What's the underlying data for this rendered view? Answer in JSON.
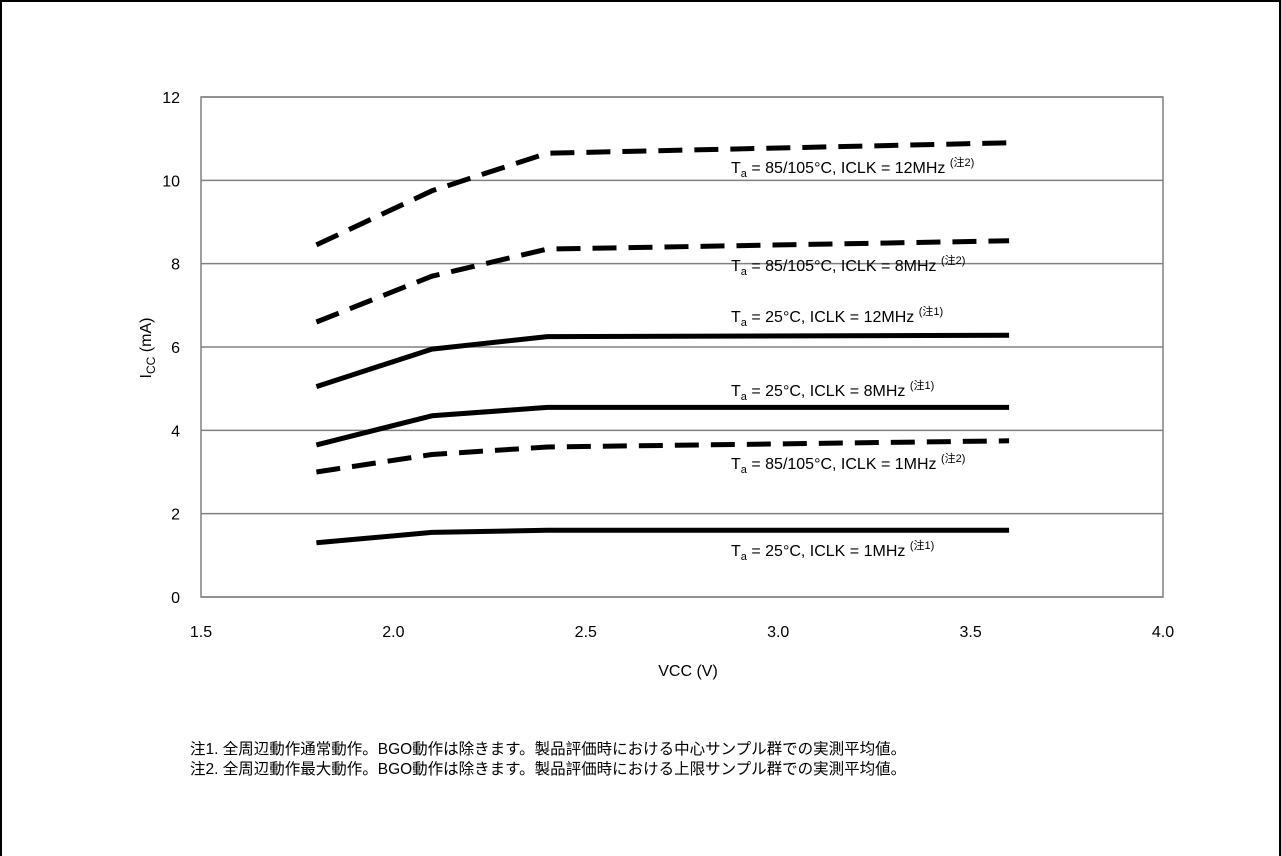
{
  "chart_data": {
    "type": "line",
    "xlabel": "VCC (V)",
    "ylabel": "ICC (mA)",
    "ylabel_main": "I",
    "ylabel_sub": "CC",
    "ylabel_rest": " (mA)",
    "xlim": [
      1.5,
      4.0
    ],
    "ylim": [
      0,
      12
    ],
    "xticks": [
      "1.5",
      "2.0",
      "2.5",
      "3.0",
      "3.5",
      "4.0"
    ],
    "yticks": [
      "0",
      "2",
      "4",
      "6",
      "8",
      "10",
      "12"
    ],
    "grid": "horizontal",
    "legend": "inline labels",
    "x": [
      1.8,
      2.1,
      2.4,
      3.6
    ],
    "series": [
      {
        "name": "Ta = 85/105°C, ICLK = 12MHz (注2)",
        "label_main": "T",
        "label_sub": "a",
        "label_text": " = 85/105°C, ICLK = 12MHz ",
        "label_note": "(注2)",
        "style": "dashed",
        "values": [
          8.45,
          9.75,
          10.65,
          10.9
        ]
      },
      {
        "name": "Ta = 85/105°C, ICLK = 8MHz (注2)",
        "label_main": "T",
        "label_sub": "a",
        "label_text": " = 85/105°C, ICLK = 8MHz ",
        "label_note": "(注2)",
        "style": "dashed",
        "values": [
          6.6,
          7.7,
          8.35,
          8.55
        ]
      },
      {
        "name": "Ta = 25°C, ICLK = 12MHz (注1)",
        "label_main": "T",
        "label_sub": "a",
        "label_text": " = 25°C, ICLK = 12MHz ",
        "label_note": "(注1)",
        "style": "solid",
        "values": [
          5.05,
          5.95,
          6.25,
          6.28
        ]
      },
      {
        "name": "Ta = 25°C, ICLK = 8MHz (注1)",
        "label_main": "T",
        "label_sub": "a",
        "label_text": " = 25°C, ICLK = 8MHz ",
        "label_note": "(注1)",
        "style": "solid",
        "values": [
          3.65,
          4.35,
          4.55,
          4.55
        ]
      },
      {
        "name": "Ta = 85/105°C, ICLK = 1MHz (注2)",
        "label_main": "T",
        "label_sub": "a",
        "label_text": " = 85/105°C, ICLK = 1MHz ",
        "label_note": "(注2)",
        "style": "dashed",
        "values": [
          3.0,
          3.42,
          3.6,
          3.75
        ]
      },
      {
        "name": "Ta = 25°C, ICLK = 1MHz (注1)",
        "label_main": "T",
        "label_sub": "a",
        "label_text": " = 25°C, ICLK = 1MHz ",
        "label_note": "(注1)",
        "style": "solid",
        "values": [
          1.3,
          1.55,
          1.6,
          1.6
        ]
      }
    ],
    "line_color": "#000000",
    "grid_color": "#808080"
  },
  "notes": [
    "注1.  全周辺動作通常動作。BGO動作は除きます。製品評価時における中心サンプル群での実測平均値。",
    "注2.  全周辺動作最大動作。BGO動作は除きます。製品評価時における上限サンプル群での実測平均値。"
  ]
}
